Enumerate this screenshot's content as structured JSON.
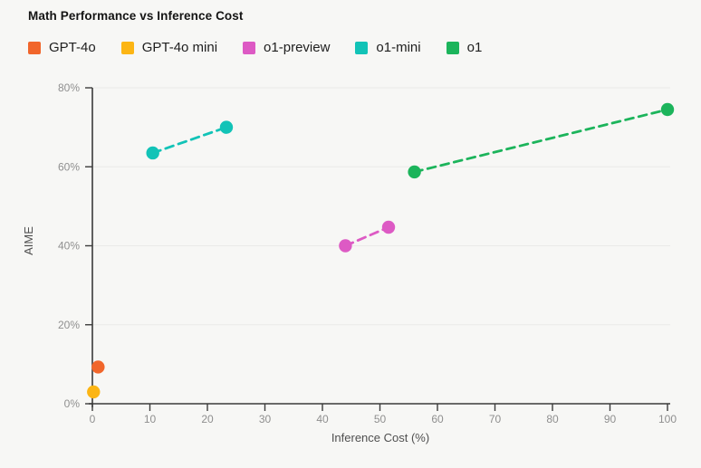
{
  "header": {
    "title": "Math Performance vs Inference Cost"
  },
  "colors": {
    "background": "#f7f7f5",
    "grid": "#eaeae8",
    "axis": "#3b3b3b",
    "tick_label": "#8f8f8f",
    "axis_title": "#4f4f4f",
    "title_text": "#141414",
    "legend_text": "#202020"
  },
  "chart_data": {
    "type": "scatter",
    "title": "Math Performance vs Inference Cost",
    "xlabel": "Inference Cost (%)",
    "ylabel": "AIME",
    "xlim": [
      0,
      100
    ],
    "ylim": [
      0,
      80
    ],
    "x_ticks": [
      0,
      10,
      20,
      30,
      40,
      50,
      60,
      70,
      80,
      90,
      100
    ],
    "y_ticks": [
      0,
      20,
      40,
      60,
      80
    ],
    "y_tick_suffix": "%",
    "grid": "horizontal-only",
    "legend_position": "top-left",
    "line_style": "dashed",
    "series": [
      {
        "name": "GPT-4o",
        "color": "#f1662b",
        "points": [
          {
            "x": 1,
            "y": 9.3
          }
        ]
      },
      {
        "name": "GPT-4o mini",
        "color": "#fcb514",
        "points": [
          {
            "x": 0.2,
            "y": 3
          }
        ]
      },
      {
        "name": "o1-preview",
        "color": "#dd5ac4",
        "points": [
          {
            "x": 44,
            "y": 40
          },
          {
            "x": 51.5,
            "y": 44.7
          }
        ]
      },
      {
        "name": "o1-mini",
        "color": "#12c3b7",
        "points": [
          {
            "x": 10.5,
            "y": 63.5
          },
          {
            "x": 23.3,
            "y": 70
          }
        ]
      },
      {
        "name": "o1",
        "color": "#1cb45b",
        "points": [
          {
            "x": 56,
            "y": 58.7
          },
          {
            "x": 100,
            "y": 74.5
          }
        ]
      }
    ]
  }
}
